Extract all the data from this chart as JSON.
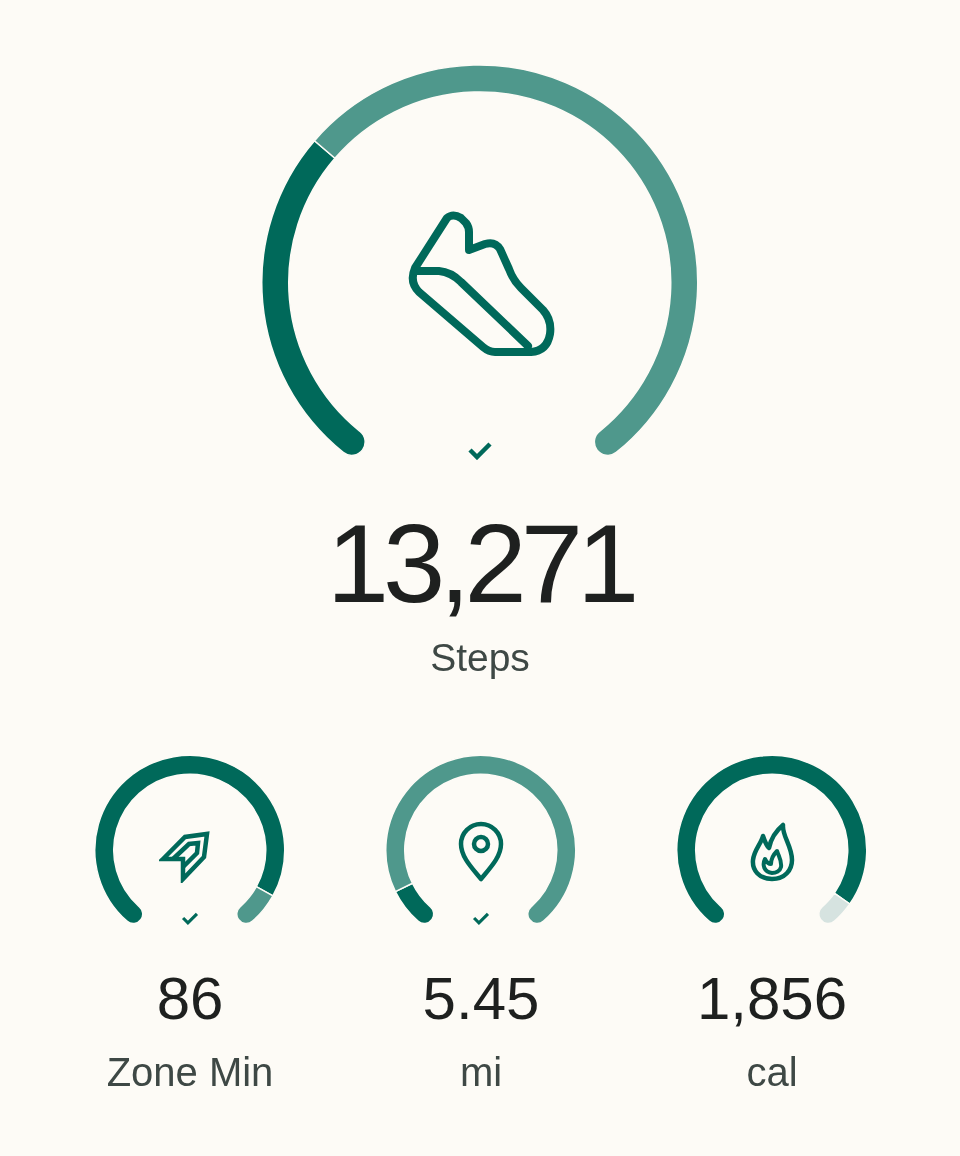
{
  "chart_data": [
    {
      "type": "donut",
      "title": "Steps",
      "annotations": [
        "13,271"
      ],
      "categories": [
        null,
        null
      ],
      "values": [
        33,
        67
      ],
      "colors": [
        "#00695a",
        "#4f988c"
      ]
    },
    {
      "type": "donut",
      "title": "Zone Min",
      "annotations": [
        "86"
      ],
      "categories": [
        null,
        null
      ],
      "values": [
        91,
        9
      ],
      "colors": [
        "#00695a",
        "#4f988c"
      ]
    },
    {
      "type": "donut",
      "title": "mi",
      "annotations": [
        "5.45"
      ],
      "categories": [
        null,
        null
      ],
      "values": [
        10,
        90
      ],
      "colors": [
        "#00695a",
        "#4f988c"
      ]
    },
    {
      "type": "donut",
      "title": "cal",
      "annotations": [
        "1,856"
      ],
      "categories": [
        null,
        null
      ],
      "values": [
        93,
        7
      ],
      "colors": [
        "#00695a",
        "#d6e3e0"
      ]
    }
  ]
}
